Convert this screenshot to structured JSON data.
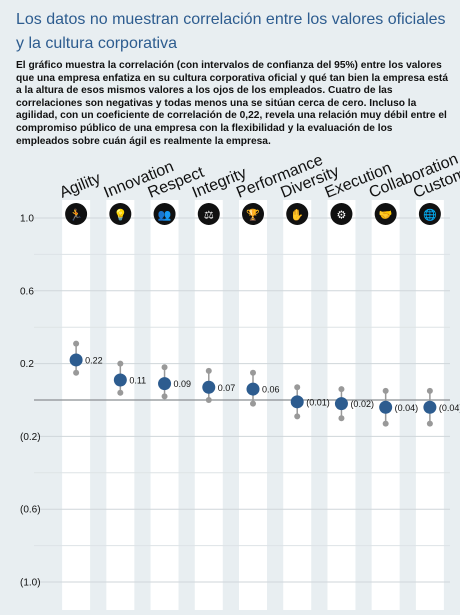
{
  "title": "Los datos no muestran correlación entre los valores oficiales y la cultura corporativa",
  "description": "El gráfico muestra la correlación (con intervalos de confianza del 95%) entre los valores que una empresa enfatiza en su cultura corporativa oficial y qué tan bien la empresa está a la altura de esos mismos valores a los ojos de los empleados. Cuatro de las correlaciones son negativas y todas menos una se sitúan cerca de cero. Incluso la agilidad, con un coeficiente de correlación de 0,22, revela una relación muy débil entre el compromiso público de una empresa con la flexibilidad y la evaluación de los empleados sobre cuán ágil es realmente la empresa.",
  "colors": {
    "title": "#2d5c8f",
    "point": "#2d5c8f",
    "whisker": "#999999",
    "column": "#ffffff",
    "background": "#e8eef1",
    "icon_circle": "#111111"
  },
  "chart_data": {
    "type": "scatter",
    "title": "",
    "xlabel": "",
    "ylabel": "",
    "ylim": [
      -1.0,
      1.0
    ],
    "y_ticks": [
      1.0,
      0.6,
      0.2,
      -0.2,
      -0.6,
      -1.0
    ],
    "y_tick_labels": [
      "1.0",
      "0.6",
      "0.2",
      "(0.2)",
      "(0.6)",
      "(1.0)"
    ],
    "categories": [
      "Agility",
      "Innovation",
      "Respect",
      "Integrity",
      "Performance",
      "Diversity",
      "Execution",
      "Collaboration",
      "Customer"
    ],
    "icons": [
      "running-person-icon",
      "lightbulb-icon",
      "people-icon",
      "scales-icon",
      "trophy-icon",
      "raised-hands-icon",
      "gears-icon",
      "handshake-icon",
      "globe-icon"
    ],
    "values": [
      0.22,
      0.11,
      0.09,
      0.07,
      0.06,
      -0.01,
      -0.02,
      -0.04,
      -0.04
    ],
    "value_labels": [
      "0.22",
      "0.11",
      "0.09",
      "0.07",
      "0.06",
      "(0.01)",
      "(0.02)",
      "(0.04)",
      "(0.04)"
    ],
    "ci_low": [
      0.15,
      0.04,
      0.02,
      0.0,
      -0.02,
      -0.09,
      -0.1,
      -0.13,
      -0.13
    ],
    "ci_high": [
      0.31,
      0.2,
      0.18,
      0.16,
      0.15,
      0.07,
      0.06,
      0.05,
      0.05
    ],
    "zero_line": true,
    "grid": true
  }
}
